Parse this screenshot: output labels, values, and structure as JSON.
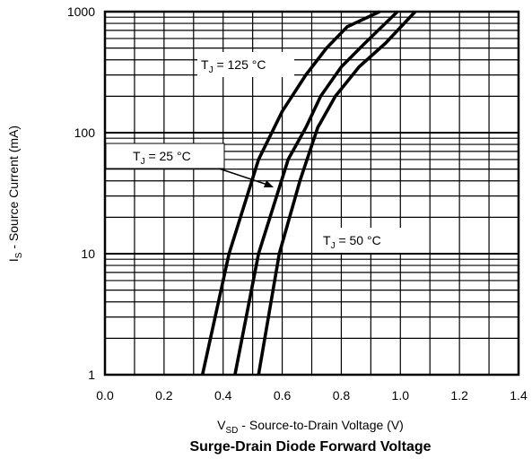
{
  "chart_data": {
    "type": "line",
    "title": "Surge-Drain Diode Forward Voltage",
    "xlabel": {
      "main": "V",
      "sub": "SD",
      "rest": " - Source-to-Drain Voltage (V)"
    },
    "ylabel": {
      "main": "I",
      "sub": "S",
      "rest": " - Source Current (mA)"
    },
    "xlim": [
      0.0,
      1.4
    ],
    "ylim": [
      1,
      1000
    ],
    "yscale": "log",
    "grid": true,
    "x_ticks": [
      "0.0",
      "0.2",
      "0.4",
      "0.6",
      "0.8",
      "1.0",
      "1.2",
      "1.4"
    ],
    "y_ticks": [
      "1",
      "10",
      "100",
      "1000"
    ],
    "series": [
      {
        "name": "T_J = 125 °C",
        "x": [
          0.33,
          0.42,
          0.52,
          0.6,
          0.68,
          0.75,
          0.82,
          0.93
        ],
        "y": [
          1,
          10,
          60,
          150,
          300,
          500,
          750,
          1000
        ]
      },
      {
        "name": "T_J = 25 °C",
        "x": [
          0.44,
          0.52,
          0.62,
          0.68,
          0.73,
          0.8,
          0.88,
          0.99
        ],
        "y": [
          1,
          10,
          60,
          110,
          200,
          350,
          550,
          1000
        ]
      },
      {
        "name": "T_J = 50 °C",
        "x": [
          0.52,
          0.59,
          0.66,
          0.72,
          0.78,
          0.86,
          0.95,
          1.05
        ],
        "y": [
          1,
          10,
          40,
          110,
          200,
          350,
          550,
          1000
        ]
      }
    ],
    "annotations": [
      {
        "main": "T",
        "sub": "J",
        "rest": " = 125 °C"
      },
      {
        "main": "T",
        "sub": "J",
        "rest": " = 25 °C"
      },
      {
        "main": "T",
        "sub": "J",
        "rest": " = 50 °C"
      }
    ]
  }
}
